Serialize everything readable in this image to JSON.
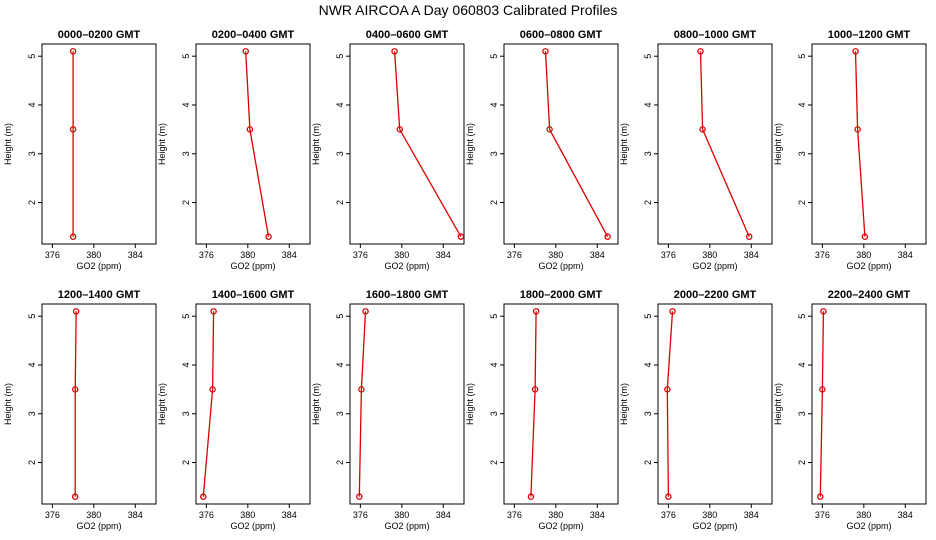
{
  "title": "NWR AIRCOA A  Day 060803  Calibrated Profiles",
  "colors": {
    "series": "#dd0000",
    "axes": "#000000"
  },
  "chart_data": [
    {
      "type": "line",
      "title": "0000–0200 GMT",
      "xlabel": "GO2 (ppm)",
      "ylabel": "Height (m)",
      "xlim": [
        375,
        386
      ],
      "ylim": [
        1.15,
        5.25
      ],
      "xticks": [
        376,
        380,
        384
      ],
      "yticks": [
        2,
        3,
        4,
        5
      ],
      "x": [
        378.0,
        378.0,
        378.0
      ],
      "y": [
        1.3,
        3.5,
        5.1
      ]
    },
    {
      "type": "line",
      "title": "0200–0400 GMT",
      "xlabel": "GO2 (ppm)",
      "ylabel": "Height (m)",
      "xlim": [
        375,
        386
      ],
      "ylim": [
        1.15,
        5.25
      ],
      "xticks": [
        376,
        380,
        384
      ],
      "yticks": [
        2,
        3,
        4,
        5
      ],
      "x": [
        382.0,
        380.2,
        379.8
      ],
      "y": [
        1.3,
        3.5,
        5.1
      ]
    },
    {
      "type": "line",
      "title": "0400–0600 GMT",
      "xlabel": "GO2 (ppm)",
      "ylabel": "Height (m)",
      "xlim": [
        375,
        386
      ],
      "ylim": [
        1.15,
        5.25
      ],
      "xticks": [
        376,
        380,
        384
      ],
      "yticks": [
        2,
        3,
        4,
        5
      ],
      "x": [
        385.7,
        379.8,
        379.3
      ],
      "y": [
        1.3,
        3.5,
        5.1
      ]
    },
    {
      "type": "line",
      "title": "0600–0800 GMT",
      "xlabel": "GO2 (ppm)",
      "ylabel": "Height (m)",
      "xlim": [
        375,
        386
      ],
      "ylim": [
        1.15,
        5.25
      ],
      "xticks": [
        376,
        380,
        384
      ],
      "yticks": [
        2,
        3,
        4,
        5
      ],
      "x": [
        385.0,
        379.4,
        379.0
      ],
      "y": [
        1.3,
        3.5,
        5.1
      ]
    },
    {
      "type": "line",
      "title": "0800–1000 GMT",
      "xlabel": "GO2 (ppm)",
      "ylabel": "Height (m)",
      "xlim": [
        375,
        386
      ],
      "ylim": [
        1.15,
        5.25
      ],
      "xticks": [
        376,
        380,
        384
      ],
      "yticks": [
        2,
        3,
        4,
        5
      ],
      "x": [
        383.8,
        379.3,
        379.1
      ],
      "y": [
        1.3,
        3.5,
        5.1
      ]
    },
    {
      "type": "line",
      "title": "1000–1200 GMT",
      "xlabel": "GO2 (ppm)",
      "ylabel": "Height (m)",
      "xlim": [
        375,
        386
      ],
      "ylim": [
        1.15,
        5.25
      ],
      "xticks": [
        376,
        380,
        384
      ],
      "yticks": [
        2,
        3,
        4,
        5
      ],
      "x": [
        380.1,
        379.4,
        379.2
      ],
      "y": [
        1.3,
        3.5,
        5.1
      ]
    },
    {
      "type": "line",
      "title": "1200–1400 GMT",
      "xlabel": "GO2 (ppm)",
      "ylabel": "Height (m)",
      "xlim": [
        375,
        386
      ],
      "ylim": [
        1.15,
        5.25
      ],
      "xticks": [
        376,
        380,
        384
      ],
      "yticks": [
        2,
        3,
        4,
        5
      ],
      "x": [
        378.2,
        378.2,
        378.3
      ],
      "y": [
        1.3,
        3.5,
        5.1
      ]
    },
    {
      "type": "line",
      "title": "1400–1600 GMT",
      "xlabel": "GO2 (ppm)",
      "ylabel": "Height (m)",
      "xlim": [
        375,
        386
      ],
      "ylim": [
        1.15,
        5.25
      ],
      "xticks": [
        376,
        380,
        384
      ],
      "yticks": [
        2,
        3,
        4,
        5
      ],
      "x": [
        375.7,
        376.6,
        376.7
      ],
      "y": [
        1.3,
        3.5,
        5.1
      ]
    },
    {
      "type": "line",
      "title": "1600–1800 GMT",
      "xlabel": "GO2 (ppm)",
      "ylabel": "Height (m)",
      "xlim": [
        375,
        386
      ],
      "ylim": [
        1.15,
        5.25
      ],
      "xticks": [
        376,
        380,
        384
      ],
      "yticks": [
        2,
        3,
        4,
        5
      ],
      "x": [
        375.9,
        376.1,
        376.5
      ],
      "y": [
        1.3,
        3.5,
        5.1
      ]
    },
    {
      "type": "line",
      "title": "1800–2000 GMT",
      "xlabel": "GO2 (ppm)",
      "ylabel": "Height (m)",
      "xlim": [
        375,
        386
      ],
      "ylim": [
        1.15,
        5.25
      ],
      "xticks": [
        376,
        380,
        384
      ],
      "yticks": [
        2,
        3,
        4,
        5
      ],
      "x": [
        377.6,
        378.0,
        378.1
      ],
      "y": [
        1.3,
        3.5,
        5.1
      ]
    },
    {
      "type": "line",
      "title": "2000–2200 GMT",
      "xlabel": "GO2 (ppm)",
      "ylabel": "Height (m)",
      "xlim": [
        375,
        386
      ],
      "ylim": [
        1.15,
        5.25
      ],
      "xticks": [
        376,
        380,
        384
      ],
      "yticks": [
        2,
        3,
        4,
        5
      ],
      "x": [
        376.0,
        375.9,
        376.4
      ],
      "y": [
        1.3,
        3.5,
        5.1
      ]
    },
    {
      "type": "line",
      "title": "2200–2400 GMT",
      "xlabel": "GO2 (ppm)",
      "ylabel": "Height (m)",
      "xlim": [
        375,
        386
      ],
      "ylim": [
        1.15,
        5.25
      ],
      "xticks": [
        376,
        380,
        384
      ],
      "yticks": [
        2,
        3,
        4,
        5
      ],
      "x": [
        375.8,
        376.0,
        376.1
      ],
      "y": [
        1.3,
        3.5,
        5.1
      ]
    }
  ]
}
